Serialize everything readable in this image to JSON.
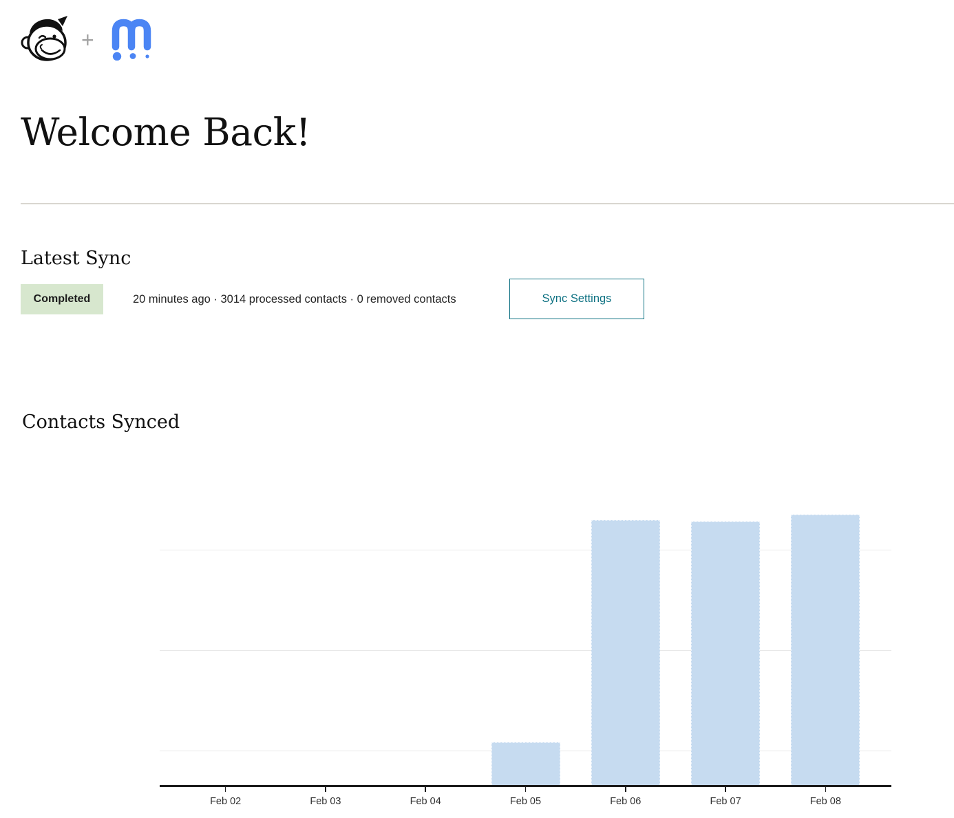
{
  "header": {
    "left_logo_icon": "mailchimp-freddie-logo",
    "separator": "+",
    "right_logo_icon": "m-dots-logo"
  },
  "page_title": "Welcome Back!",
  "latest_sync": {
    "heading": "Latest Sync",
    "status_label": "Completed",
    "summary": "20 minutes ago · 3014 processed contacts · 0 removed contacts",
    "button_label": "Sync Settings"
  },
  "contacts_synced": {
    "heading": "Contacts Synced"
  },
  "chart_data": {
    "type": "bar",
    "title": "Contacts Synced",
    "categories": [
      "Feb 02",
      "Feb 03",
      "Feb 04",
      "Feb 05",
      "Feb 06",
      "Feb 07",
      "Feb 08"
    ],
    "values": [
      0,
      0,
      0,
      475,
      2950,
      2935,
      3010
    ],
    "xlabel": "",
    "ylabel": "",
    "ylim": [
      0,
      3300
    ],
    "gridlines": [
      375,
      1490,
      2610
    ],
    "grid": true,
    "legend": false,
    "bar_color": "#c6dbf0",
    "bar_border_color": "#e9f1fa",
    "grid_color": "#e8e8e8",
    "axis_color": "#1c1c1c"
  },
  "colors": {
    "teal": "#0f7283",
    "badge_bg": "#d7e7ce",
    "badge_text": "#1c1c1c",
    "divider": "#d9d6d0",
    "logo_blue": "#4b85f4",
    "logo_black": "#111111"
  }
}
